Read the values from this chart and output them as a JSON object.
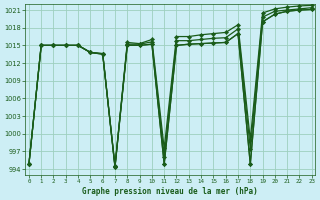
{
  "title": "Graphe pression niveau de la mer (hPa)",
  "bg_color": "#cdeef5",
  "grid_color": "#9ecfbf",
  "line_color": "#1a5c1a",
  "ylim": [
    993.0,
    1022.0
  ],
  "yticks": [
    994,
    997,
    1000,
    1003,
    1006,
    1009,
    1012,
    1015,
    1018,
    1021
  ],
  "xlim": [
    -0.3,
    23.3
  ],
  "xticks": [
    0,
    1,
    2,
    3,
    4,
    5,
    6,
    7,
    8,
    9,
    10,
    11,
    12,
    13,
    14,
    15,
    16,
    17,
    18,
    19,
    20,
    21,
    22,
    23
  ],
  "series": [
    [
      994.8,
      1015.0,
      1015.0,
      1015.0,
      1015.0,
      1013.8,
      1013.5,
      994.3,
      1015.0,
      1015.0,
      1015.2,
      994.8,
      1015.0,
      1015.2,
      1015.3,
      1015.4,
      1015.5,
      1017.0,
      994.8,
      1019.0,
      1020.3,
      1020.8,
      1021.0,
      1021.1
    ],
    [
      994.8,
      1015.0,
      1015.0,
      1015.0,
      1015.0,
      1013.8,
      1013.5,
      994.3,
      1015.0,
      1015.0,
      1015.2,
      994.8,
      1015.0,
      1015.2,
      1015.3,
      1015.4,
      1015.5,
      1017.0,
      994.8,
      1019.0,
      1020.3,
      1020.8,
      1021.0,
      1021.1
    ],
    [
      994.8,
      1015.0,
      1015.0,
      1015.0,
      1015.0,
      1013.8,
      1013.6,
      994.5,
      1015.2,
      1015.2,
      1015.6,
      996.0,
      1015.8,
      1015.8,
      1016.0,
      1016.2,
      1016.3,
      1017.8,
      997.4,
      1019.8,
      1020.8,
      1021.0,
      1021.2,
      1021.4
    ],
    [
      994.8,
      1015.0,
      1015.0,
      1015.0,
      1015.0,
      1013.8,
      1013.6,
      994.5,
      1015.5,
      1015.3,
      1016.0,
      997.5,
      1016.5,
      1016.5,
      1016.8,
      1017.0,
      1017.2,
      1018.5,
      999.0,
      1020.5,
      1021.2,
      1021.5,
      1021.7,
      1021.8
    ]
  ]
}
